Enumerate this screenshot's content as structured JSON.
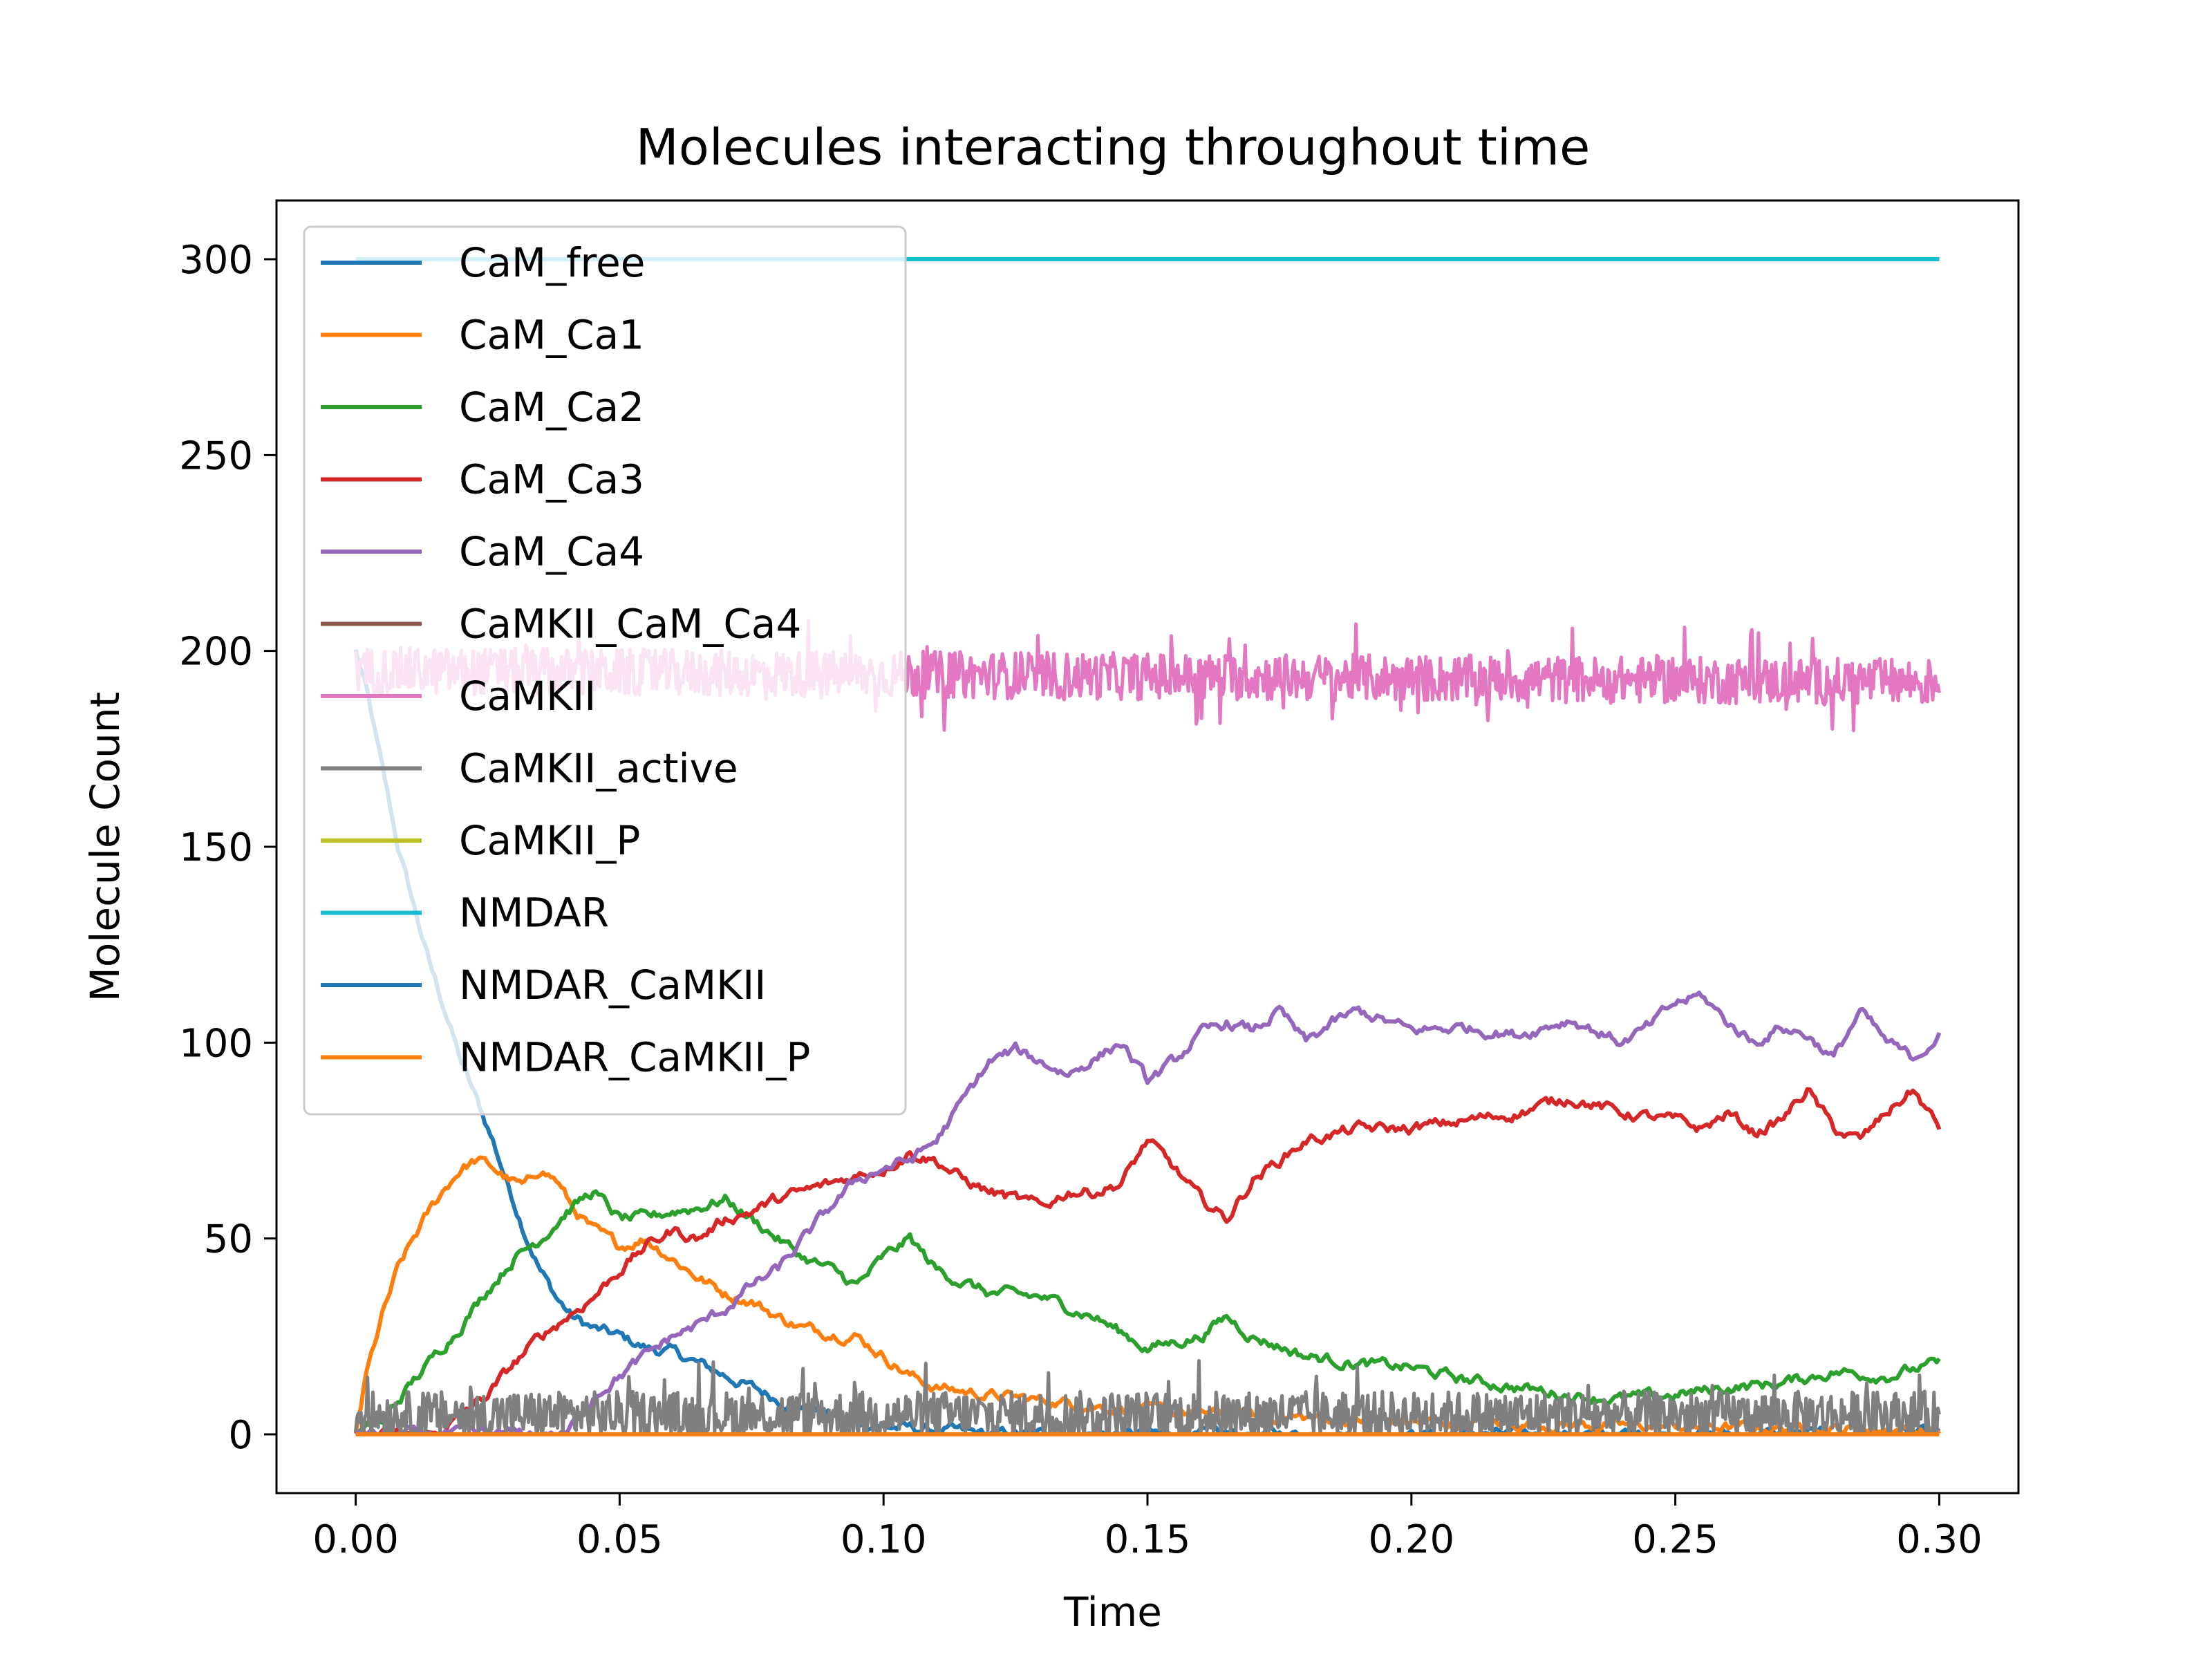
{
  "chart_data": {
    "type": "line",
    "title": "Molecules interacting throughout time",
    "xlabel": "Time",
    "ylabel": "Molecule Count",
    "xlim": [
      -0.015,
      0.315
    ],
    "ylim": [
      -15,
      315
    ],
    "xticks": [
      "0.00",
      "0.05",
      "0.10",
      "0.15",
      "0.20",
      "0.25",
      "0.30"
    ],
    "xtick_values": [
      0.0,
      0.05,
      0.1,
      0.15,
      0.2,
      0.25,
      0.3
    ],
    "yticks": [
      "0",
      "50",
      "100",
      "150",
      "200",
      "250",
      "300"
    ],
    "ytick_values": [
      0,
      50,
      100,
      150,
      200,
      250,
      300
    ],
    "grid": false,
    "legend_position": "upper-left",
    "series": [
      {
        "name": "CaM_free",
        "color": "#1f77b4",
        "x": [
          0.0,
          0.002,
          0.005,
          0.008,
          0.011,
          0.014,
          0.017,
          0.02,
          0.023,
          0.026,
          0.029,
          0.032,
          0.035,
          0.038,
          0.041,
          0.045,
          0.05,
          0.055,
          0.06,
          0.065,
          0.07,
          0.075,
          0.08,
          0.085,
          0.09,
          0.095,
          0.1,
          0.11,
          0.12,
          0.15,
          0.2,
          0.25,
          0.3
        ],
        "y": [
          200,
          190,
          170,
          150,
          135,
          120,
          108,
          95,
          85,
          75,
          63,
          52,
          42,
          35,
          30,
          27,
          25,
          22,
          21,
          18,
          15,
          12,
          9,
          7,
          5,
          3,
          2,
          1,
          0,
          0,
          0,
          0,
          0
        ]
      },
      {
        "name": "CaM_Ca1",
        "color": "#ff7f0e",
        "x": [
          0.0,
          0.002,
          0.005,
          0.008,
          0.011,
          0.014,
          0.017,
          0.02,
          0.023,
          0.026,
          0.029,
          0.032,
          0.035,
          0.038,
          0.041,
          0.045,
          0.05,
          0.055,
          0.06,
          0.065,
          0.07,
          0.075,
          0.08,
          0.085,
          0.09,
          0.095,
          0.1,
          0.105,
          0.11,
          0.12,
          0.15,
          0.2,
          0.25,
          0.3
        ],
        "y": [
          0,
          15,
          30,
          42,
          50,
          57,
          63,
          68,
          70,
          68,
          65,
          63,
          68,
          65,
          58,
          52,
          48,
          50,
          45,
          40,
          36,
          34,
          30,
          27,
          26,
          25,
          20,
          15,
          12,
          10,
          6,
          3,
          2,
          1
        ]
      },
      {
        "name": "CaM_Ca2",
        "color": "#2ca02c",
        "x": [
          0.0,
          0.005,
          0.01,
          0.015,
          0.02,
          0.025,
          0.03,
          0.035,
          0.04,
          0.045,
          0.05,
          0.055,
          0.06,
          0.065,
          0.07,
          0.075,
          0.08,
          0.085,
          0.09,
          0.095,
          0.1,
          0.105,
          0.11,
          0.12,
          0.13,
          0.14,
          0.15,
          0.16,
          0.165,
          0.17,
          0.18,
          0.19,
          0.2,
          0.21,
          0.22,
          0.23,
          0.24,
          0.25,
          0.26,
          0.27,
          0.28,
          0.29,
          0.3
        ],
        "y": [
          0,
          3,
          12,
          20,
          28,
          37,
          45,
          50,
          57,
          62,
          55,
          55,
          57,
          58,
          60,
          55,
          50,
          45,
          42,
          38,
          45,
          50,
          42,
          36,
          35,
          30,
          22,
          25,
          30,
          25,
          20,
          18,
          17,
          14,
          12,
          10,
          9,
          10,
          12,
          13,
          16,
          15,
          18
        ]
      },
      {
        "name": "CaM_Ca3",
        "color": "#d62728",
        "x": [
          0.0,
          0.015,
          0.02,
          0.025,
          0.03,
          0.035,
          0.04,
          0.045,
          0.05,
          0.055,
          0.06,
          0.065,
          0.07,
          0.075,
          0.08,
          0.085,
          0.09,
          0.095,
          0.1,
          0.105,
          0.11,
          0.115,
          0.12,
          0.125,
          0.13,
          0.135,
          0.14,
          0.145,
          0.15,
          0.155,
          0.16,
          0.165,
          0.17,
          0.175,
          0.18,
          0.19,
          0.2,
          0.21,
          0.22,
          0.23,
          0.24,
          0.25,
          0.255,
          0.26,
          0.265,
          0.27,
          0.275,
          0.28,
          0.285,
          0.29,
          0.295,
          0.3
        ],
        "y": [
          0,
          0,
          5,
          10,
          18,
          25,
          30,
          35,
          42,
          48,
          52,
          50,
          55,
          57,
          60,
          62,
          64,
          66,
          68,
          72,
          70,
          65,
          62,
          60,
          58,
          62,
          62,
          64,
          75,
          68,
          60,
          55,
          65,
          70,
          75,
          78,
          78,
          80,
          82,
          86,
          82,
          80,
          78,
          82,
          77,
          80,
          88,
          78,
          75,
          82,
          88,
          78
        ]
      },
      {
        "name": "CaM_Ca4",
        "color": "#9467bd",
        "x": [
          0.0,
          0.04,
          0.045,
          0.05,
          0.055,
          0.06,
          0.065,
          0.07,
          0.075,
          0.08,
          0.085,
          0.09,
          0.095,
          0.1,
          0.105,
          0.11,
          0.115,
          0.12,
          0.125,
          0.13,
          0.135,
          0.14,
          0.145,
          0.15,
          0.155,
          0.16,
          0.165,
          0.17,
          0.175,
          0.18,
          0.185,
          0.19,
          0.2,
          0.21,
          0.22,
          0.23,
          0.24,
          0.245,
          0.25,
          0.255,
          0.26,
          0.265,
          0.27,
          0.275,
          0.28,
          0.285,
          0.29,
          0.295,
          0.3
        ],
        "y": [
          0,
          0,
          10,
          15,
          20,
          25,
          28,
          32,
          38,
          42,
          50,
          58,
          65,
          68,
          70,
          75,
          85,
          95,
          98,
          95,
          92,
          96,
          100,
          90,
          95,
          102,
          105,
          103,
          108,
          100,
          105,
          108,
          103,
          104,
          102,
          106,
          100,
          104,
          110,
          112,
          105,
          100,
          104,
          102,
          96,
          108,
          100,
          96,
          102
        ]
      },
      {
        "name": "CaMKII_CaM_Ca4",
        "color": "#8c564b",
        "x": [
          0.0,
          0.3
        ],
        "y": [
          0,
          0
        ]
      },
      {
        "name": "CaMKII",
        "color": "#e377c2",
        "x": [
          0.0,
          0.1,
          0.2,
          0.3
        ],
        "y": [
          195,
          194,
          193,
          192
        ],
        "noise": 6
      },
      {
        "name": "CaMKII_active",
        "color": "#7f7f7f",
        "x": [
          0.0,
          0.3
        ],
        "y": [
          5,
          5
        ],
        "noise": 6
      },
      {
        "name": "CaMKII_P",
        "color": "#bcbd22",
        "x": [
          0.0,
          0.3
        ],
        "y": [
          0,
          0
        ]
      },
      {
        "name": "NMDAR",
        "color": "#17becf",
        "x": [
          0.0,
          0.3
        ],
        "y": [
          300,
          300
        ]
      },
      {
        "name": "NMDAR_CaMKII",
        "color": "#1f77b4",
        "x": [
          0.0,
          0.3
        ],
        "y": [
          0,
          0
        ]
      },
      {
        "name": "NMDAR_CaMKII_P",
        "color": "#ff7f0e",
        "x": [
          0.0,
          0.3
        ],
        "y": [
          0,
          0
        ]
      }
    ]
  }
}
